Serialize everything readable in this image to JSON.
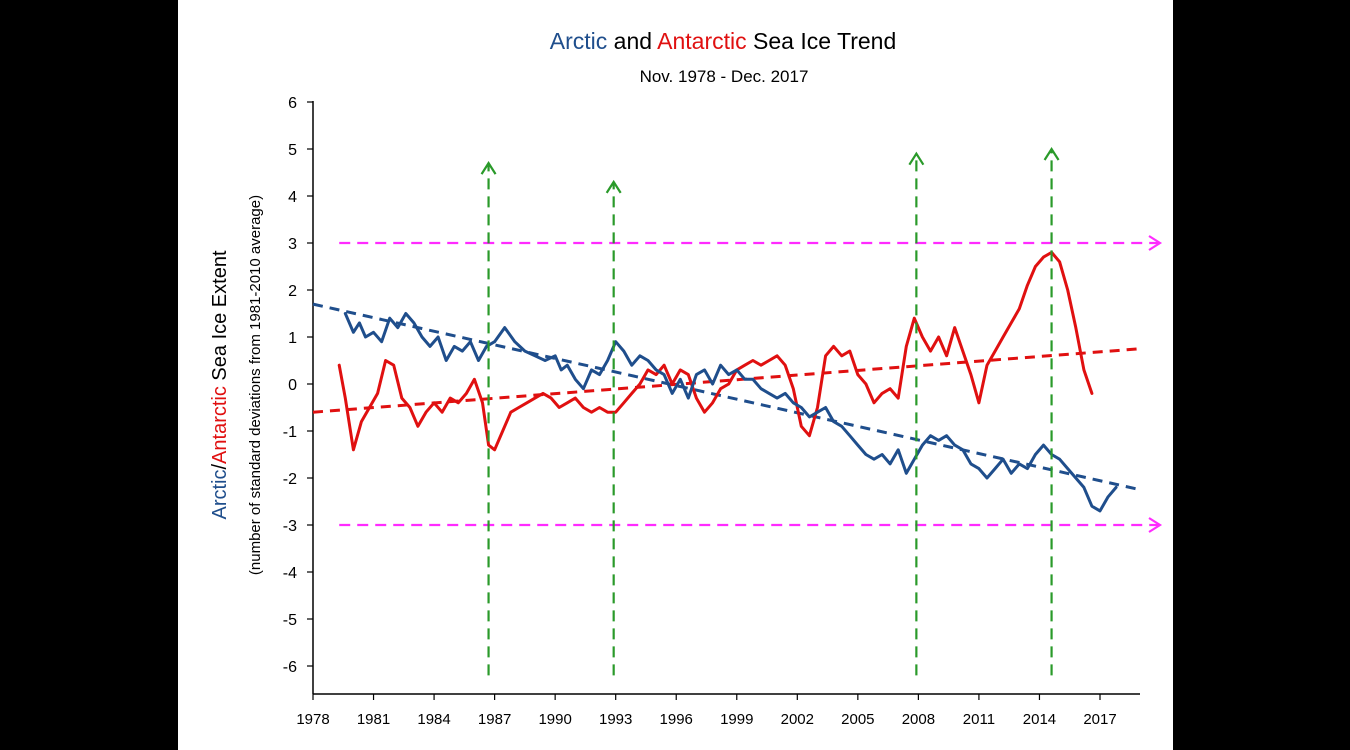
{
  "chart_data": {
    "type": "line",
    "title_parts": [
      {
        "text": "Arctic",
        "color": "#1f4e8c"
      },
      {
        "text": " and ",
        "color": "#000000"
      },
      {
        "text": "Antarctic",
        "color": "#e01010"
      },
      {
        "text": " Sea Ice Trend",
        "color": "#000000"
      }
    ],
    "subtitle": "Nov. 1978 -  Dec. 2017",
    "ylabel_parts": [
      {
        "text": "Arctic",
        "color": "#1f4e8c"
      },
      {
        "text": "/",
        "color": "#000000"
      },
      {
        "text": "Antarctic",
        "color": "#e01010"
      },
      {
        "text": " Sea Ice Extent",
        "color": "#000000"
      }
    ],
    "ylabel_sub": "(number of standard deviations from 1981-2010 average)",
    "xlim": [
      1978,
      2020
    ],
    "ylim": [
      -6.6,
      6
    ],
    "x_ticks": [
      1978,
      1981,
      1984,
      1987,
      1990,
      1993,
      1996,
      1999,
      2002,
      2005,
      2008,
      2011,
      2014,
      2017
    ],
    "y_ticks": [
      6,
      5,
      4,
      3,
      2,
      1,
      0,
      -1,
      -2,
      -3,
      -4,
      -5,
      -6
    ],
    "colors": {
      "arctic": "#1f4e8c",
      "antarctic": "#e01010",
      "event_marker": "#2a9a2a",
      "threshold": "#ff2bff"
    },
    "series": [
      {
        "key": "arctic",
        "x": [
          1979.6,
          1980.0,
          1980.3,
          1980.6,
          1981.0,
          1981.4,
          1981.8,
          1982.2,
          1982.6,
          1983.0,
          1983.4,
          1983.8,
          1984.2,
          1984.6,
          1985.0,
          1985.4,
          1985.8,
          1986.2,
          1986.6,
          1987.0,
          1987.5,
          1988.0,
          1988.5,
          1989.0,
          1989.5,
          1990.0,
          1990.3,
          1990.6,
          1991.0,
          1991.4,
          1991.8,
          1992.2,
          1992.6,
          1993.0,
          1993.4,
          1993.8,
          1994.2,
          1994.6,
          1995.0,
          1995.4,
          1995.8,
          1996.2,
          1996.6,
          1997.0,
          1997.4,
          1997.8,
          1998.2,
          1998.6,
          1999.0,
          1999.4,
          1999.8,
          2000.2,
          2000.6,
          2001.0,
          2001.4,
          2001.8,
          2002.2,
          2002.6,
          2003.0,
          2003.4,
          2003.8,
          2004.2,
          2004.6,
          2005.0,
          2005.4,
          2005.8,
          2006.2,
          2006.6,
          2007.0,
          2007.4,
          2007.8,
          2008.2,
          2008.6,
          2009.0,
          2009.4,
          2009.8,
          2010.2,
          2010.6,
          2011.0,
          2011.4,
          2011.8,
          2012.2,
          2012.6,
          2013.0,
          2013.4,
          2013.8,
          2014.2,
          2014.6,
          2015.0,
          2015.4,
          2015.8,
          2016.2,
          2016.6,
          2017.0,
          2017.4,
          2017.8
        ],
        "values": [
          1.5,
          1.1,
          1.3,
          1.0,
          1.1,
          0.9,
          1.4,
          1.2,
          1.5,
          1.3,
          1.0,
          0.8,
          1.0,
          0.5,
          0.8,
          0.7,
          0.9,
          0.5,
          0.8,
          0.9,
          1.2,
          0.9,
          0.7,
          0.6,
          0.5,
          0.6,
          0.3,
          0.4,
          0.1,
          -0.1,
          0.3,
          0.2,
          0.5,
          0.9,
          0.7,
          0.4,
          0.6,
          0.5,
          0.3,
          0.2,
          -0.2,
          0.1,
          -0.3,
          0.2,
          0.3,
          0.0,
          0.4,
          0.2,
          0.3,
          0.1,
          0.1,
          -0.1,
          -0.2,
          -0.3,
          -0.2,
          -0.4,
          -0.5,
          -0.7,
          -0.6,
          -0.5,
          -0.8,
          -0.9,
          -1.1,
          -1.3,
          -1.5,
          -1.6,
          -1.5,
          -1.7,
          -1.4,
          -1.9,
          -1.6,
          -1.3,
          -1.1,
          -1.2,
          -1.1,
          -1.3,
          -1.4,
          -1.7,
          -1.8,
          -2.0,
          -1.8,
          -1.6,
          -1.9,
          -1.7,
          -1.8,
          -1.5,
          -1.3,
          -1.5,
          -1.6,
          -1.8,
          -2.0,
          -2.2,
          -2.6,
          -2.7,
          -2.4,
          -2.2
        ]
      },
      {
        "key": "antarctic",
        "x": [
          1979.3,
          1979.6,
          1980.0,
          1980.4,
          1980.8,
          1981.2,
          1981.6,
          1982.0,
          1982.4,
          1982.8,
          1983.2,
          1983.6,
          1984.0,
          1984.4,
          1984.8,
          1985.2,
          1985.6,
          1986.0,
          1986.4,
          1986.7,
          1987.0,
          1987.4,
          1987.8,
          1988.2,
          1988.6,
          1989.0,
          1989.4,
          1989.8,
          1990.2,
          1990.6,
          1991.0,
          1991.4,
          1991.8,
          1992.2,
          1992.6,
          1993.0,
          1993.4,
          1993.8,
          1994.2,
          1994.6,
          1995.0,
          1995.4,
          1995.8,
          1996.2,
          1996.6,
          1997.0,
          1997.4,
          1997.8,
          1998.2,
          1998.6,
          1999.0,
          1999.4,
          1999.8,
          2000.2,
          2000.6,
          2001.0,
          2001.4,
          2001.8,
          2002.2,
          2002.6,
          2003.0,
          2003.4,
          2003.8,
          2004.2,
          2004.6,
          2005.0,
          2005.4,
          2005.8,
          2006.2,
          2006.6,
          2007.0,
          2007.4,
          2007.8,
          2008.2,
          2008.6,
          2009.0,
          2009.4,
          2009.8,
          2010.2,
          2010.6,
          2011.0,
          2011.4,
          2011.8,
          2012.2,
          2012.6,
          2013.0,
          2013.4,
          2013.8,
          2014.2,
          2014.6,
          2015.0,
          2015.4,
          2015.8,
          2016.2,
          2016.6
        ],
        "values": [
          0.4,
          -0.3,
          -1.4,
          -0.8,
          -0.5,
          -0.2,
          0.5,
          0.4,
          -0.3,
          -0.5,
          -0.9,
          -0.6,
          -0.4,
          -0.6,
          -0.3,
          -0.4,
          -0.2,
          0.1,
          -0.4,
          -1.3,
          -1.4,
          -1.0,
          -0.6,
          -0.5,
          -0.4,
          -0.3,
          -0.2,
          -0.3,
          -0.5,
          -0.4,
          -0.3,
          -0.5,
          -0.6,
          -0.5,
          -0.6,
          -0.6,
          -0.4,
          -0.2,
          0.0,
          0.3,
          0.2,
          0.4,
          0.0,
          0.3,
          0.2,
          -0.3,
          -0.6,
          -0.4,
          -0.1,
          0.0,
          0.3,
          0.4,
          0.5,
          0.4,
          0.5,
          0.6,
          0.4,
          -0.1,
          -0.9,
          -1.1,
          -0.5,
          0.6,
          0.8,
          0.6,
          0.7,
          0.2,
          0.0,
          -0.4,
          -0.2,
          -0.1,
          -0.3,
          0.8,
          1.4,
          1.0,
          0.7,
          1.0,
          0.6,
          1.2,
          0.7,
          0.2,
          -0.4,
          0.4,
          0.7,
          1.0,
          1.3,
          1.6,
          2.1,
          2.5,
          2.7,
          2.8,
          2.6,
          2.0,
          1.2,
          0.3,
          -0.2
        ]
      }
    ],
    "trend_lines": [
      {
        "key": "arctic",
        "x": [
          1978,
          2019
        ],
        "values": [
          1.7,
          -2.25
        ]
      },
      {
        "key": "antarctic",
        "x": [
          1978,
          2019
        ],
        "values": [
          -0.6,
          0.75
        ]
      }
    ],
    "event_markers": [
      {
        "x": 1986.7,
        "y_start": -6.2,
        "y_end": 4.7
      },
      {
        "x": 1992.9,
        "y_start": -6.2,
        "y_end": 4.3
      },
      {
        "x": 2007.9,
        "y_start": -6.2,
        "y_end": 4.9
      },
      {
        "x": 2014.6,
        "y_start": -6.2,
        "y_end": 5.0
      }
    ],
    "thresholds": [
      3,
      -3
    ],
    "grid": false,
    "legend": "none"
  }
}
